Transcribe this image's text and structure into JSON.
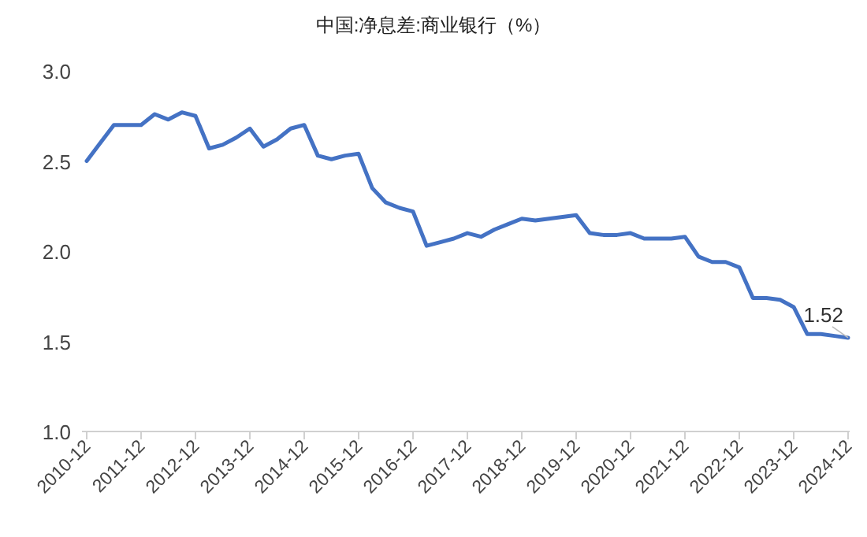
{
  "chart_data": {
    "type": "line",
    "title": "中国:净息差:商业银行（%）",
    "categories": [
      "2010-12",
      null,
      null,
      null,
      "2011-12",
      null,
      null,
      null,
      "2012-12",
      null,
      null,
      null,
      "2013-12",
      null,
      null,
      null,
      "2014-12",
      null,
      null,
      null,
      "2015-12",
      null,
      null,
      null,
      "2016-12",
      null,
      null,
      null,
      "2017-12",
      null,
      null,
      null,
      "2018-12",
      null,
      null,
      null,
      "2019-12",
      null,
      null,
      null,
      "2020-12",
      null,
      null,
      null,
      "2021-12",
      null,
      null,
      null,
      "2022-12",
      null,
      null,
      null,
      "2023-12",
      null,
      null,
      null,
      "2024-12"
    ],
    "series": [
      {
        "color": "#4472c4",
        "values": [
          2.5,
          2.6,
          2.7,
          2.7,
          2.7,
          2.76,
          2.73,
          2.77,
          2.75,
          2.57,
          2.59,
          2.63,
          2.68,
          2.58,
          2.62,
          2.68,
          2.7,
          2.53,
          2.51,
          2.53,
          2.54,
          2.35,
          2.27,
          2.24,
          2.22,
          2.03,
          2.05,
          2.07,
          2.1,
          2.08,
          2.12,
          2.15,
          2.18,
          2.17,
          2.18,
          2.19,
          2.2,
          2.1,
          2.09,
          2.09,
          2.1,
          2.07,
          2.07,
          2.07,
          2.08,
          1.97,
          1.94,
          1.94,
          1.91,
          1.74,
          1.74,
          1.73,
          1.69,
          1.54,
          1.54,
          1.53,
          1.52
        ],
        "value_labels": [
          null,
          null,
          null,
          null,
          null,
          null,
          null,
          null,
          null,
          null,
          null,
          null,
          null,
          null,
          null,
          null,
          null,
          null,
          null,
          null,
          null,
          null,
          null,
          null,
          null,
          null,
          null,
          null,
          null,
          null,
          null,
          null,
          null,
          null,
          null,
          null,
          null,
          null,
          null,
          null,
          null,
          null,
          null,
          null,
          null,
          null,
          null,
          null,
          null,
          null,
          null,
          null,
          null,
          null,
          null,
          null,
          "1.52"
        ]
      }
    ],
    "ylim": [
      1.0,
      3.0
    ],
    "yticks": [
      {
        "value": 1.0,
        "label": "1.0"
      },
      {
        "value": 1.5,
        "label": "1.5"
      },
      {
        "value": 2.0,
        "label": "2.0"
      },
      {
        "value": 2.5,
        "label": "2.5"
      },
      {
        "value": 3.0,
        "label": "3.0"
      }
    ],
    "grid": false,
    "marker": "none",
    "line_style": "solid"
  }
}
